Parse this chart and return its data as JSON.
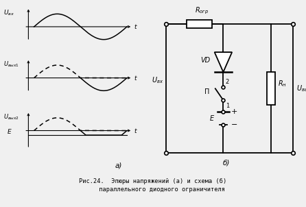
{
  "bg_color": "#f0f0f0",
  "line_color": "#000000",
  "caption": "Рис.24.  Эпюры напряжений (а) и схема (б)\n     параллельного диодного ограничителя",
  "label_a": "а)",
  "label_b": "б)"
}
